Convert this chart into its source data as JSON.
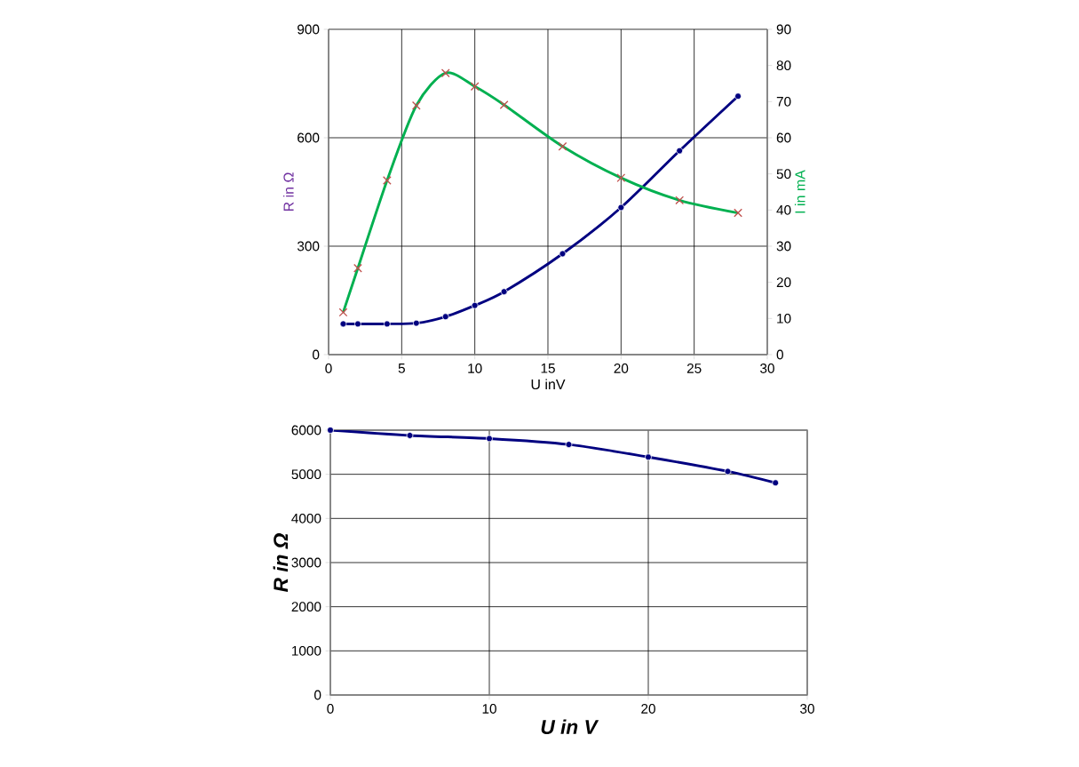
{
  "chart_data": [
    {
      "type": "line",
      "xlabel": "U inV",
      "ylabel": "R in Ω",
      "y2label": "I in mA",
      "x": [
        1,
        2,
        4,
        6,
        8,
        10,
        12,
        16,
        20,
        24,
        28
      ],
      "series": [
        {
          "color": "#000080",
          "marker": "circle",
          "values": [
            85,
            85,
            85,
            87,
            105,
            136,
            174,
            279,
            407,
            564,
            715
          ]
        },
        {
          "color": "#00b050",
          "marker": "cross",
          "axis": "y2",
          "values": [
            11.7,
            23.9,
            48.2,
            68.9,
            77.9,
            74.2,
            69.1,
            57.6,
            48.9,
            42.7,
            39.2
          ]
        }
      ],
      "xlim": [
        0,
        30
      ],
      "xticks": [
        0,
        5,
        10,
        15,
        20,
        25,
        30
      ],
      "ylim": [
        0,
        900
      ],
      "yticks": [
        0,
        300,
        600,
        900
      ],
      "y2lim": [
        0,
        90
      ],
      "y2ticks": [
        0,
        10,
        20,
        30,
        40,
        50,
        60,
        70,
        80,
        90
      ],
      "grid": true,
      "line_style": "solid"
    },
    {
      "type": "line",
      "xlabel": "U in V",
      "ylabel": "R in Ω",
      "x": [
        0,
        5,
        10,
        15,
        20,
        25,
        28
      ],
      "series": [
        {
          "color": "#000080",
          "marker": "circle",
          "values": [
            6000,
            5880,
            5810,
            5675,
            5390,
            5065,
            4807
          ]
        }
      ],
      "xlim": [
        0,
        30
      ],
      "xticks": [
        0,
        10,
        20,
        30
      ],
      "ylim": [
        0,
        6000
      ],
      "yticks": [
        0,
        1000,
        2000,
        3000,
        4000,
        5000,
        6000
      ],
      "grid": true,
      "line_style": "solid"
    }
  ]
}
